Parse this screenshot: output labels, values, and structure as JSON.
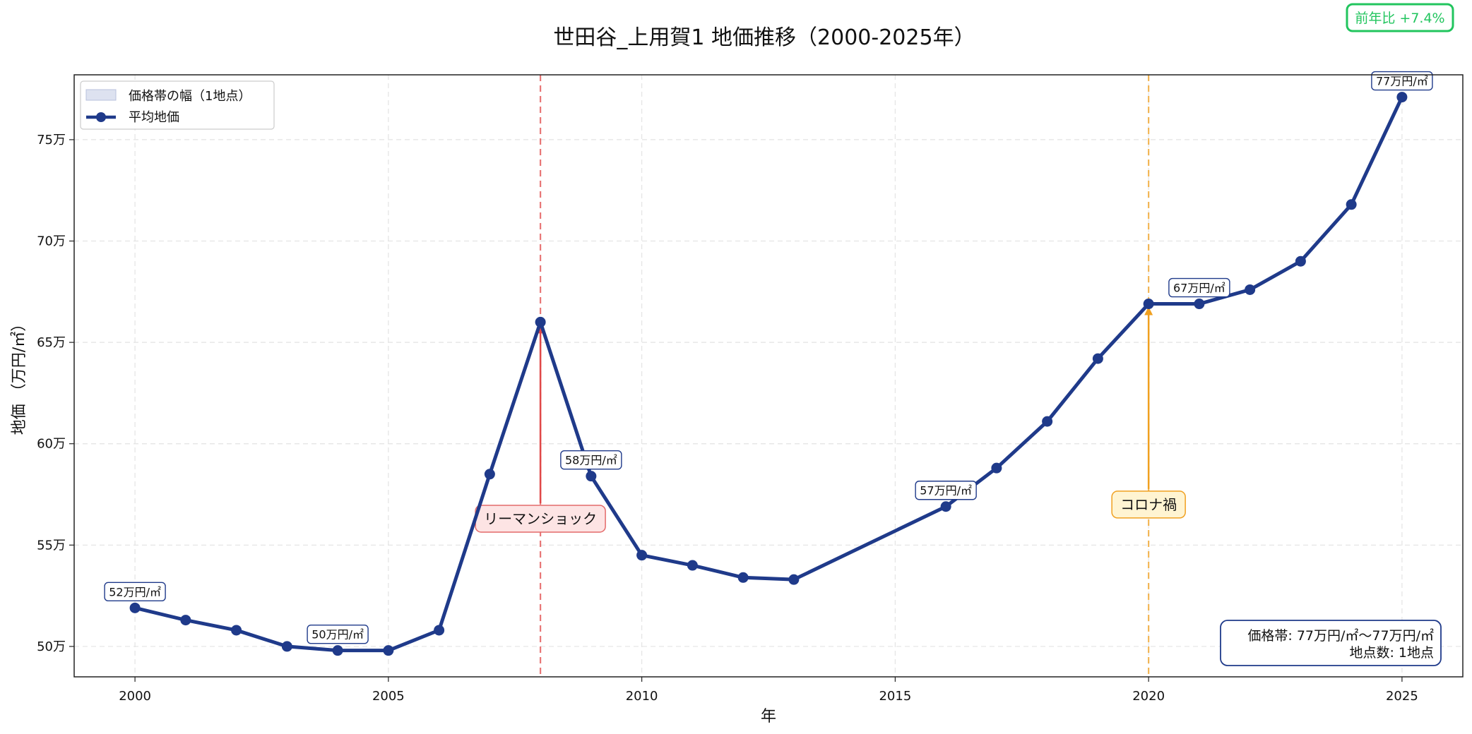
{
  "chart_data": {
    "type": "line",
    "title": "世田谷_上用賀1 地価推移（2000-2025年）",
    "xlabel": "年",
    "ylabel": "地価 （万円/㎡）",
    "xlim": [
      1998.8,
      2026.2
    ],
    "ylim": [
      48.5,
      78.2
    ],
    "x_ticks": [
      2000,
      2005,
      2010,
      2015,
      2020,
      2025
    ],
    "y_ticks": [
      50,
      55,
      60,
      65,
      70,
      75
    ],
    "y_tick_suffix": "万",
    "grid": true,
    "legend_position": "top-left",
    "legend": [
      {
        "label": "価格帯の幅（1地点）",
        "kind": "band"
      },
      {
        "label": "平均地価",
        "kind": "line"
      }
    ],
    "series": [
      {
        "name": "平均地価",
        "x": [
          2000,
          2001,
          2002,
          2003,
          2004,
          2005,
          2006,
          2007,
          2008,
          2009,
          2010,
          2011,
          2012,
          2013,
          2016,
          2017,
          2018,
          2019,
          2020,
          2021,
          2022,
          2023,
          2024,
          2025
        ],
        "values": [
          51.9,
          51.3,
          50.8,
          50.0,
          49.8,
          49.8,
          50.8,
          58.5,
          66.0,
          58.4,
          54.5,
          54.0,
          53.4,
          53.3,
          56.9,
          58.8,
          61.1,
          64.2,
          66.9,
          66.9,
          67.6,
          69.0,
          71.8,
          77.1
        ],
        "color": "#1f3a8a"
      }
    ],
    "data_labels": [
      {
        "x": 2000,
        "y": 51.9,
        "text": "52万円/㎡"
      },
      {
        "x": 2004,
        "y": 49.8,
        "text": "50万円/㎡"
      },
      {
        "x": 2009,
        "y": 58.4,
        "text": "58万円/㎡"
      },
      {
        "x": 2016,
        "y": 56.9,
        "text": "57万円/㎡"
      },
      {
        "x": 2021,
        "y": 66.9,
        "text": "67万円/㎡"
      },
      {
        "x": 2025,
        "y": 77.1,
        "text": "77万円/㎡"
      }
    ],
    "events": [
      {
        "x": 2008,
        "y": 66.0,
        "label": "リーマンショック",
        "label_y": 56.3,
        "color": "#e04848",
        "box_fill": "#fde4e4",
        "box_stroke": "#e46a6a"
      },
      {
        "x": 2020,
        "y": 66.9,
        "label": "コロナ禍",
        "label_y": 57.0,
        "color": "#f0a020",
        "box_fill": "#fff4d2",
        "box_stroke": "#f0a020"
      }
    ],
    "annotations": {
      "yoy": "前年比 +7.4%",
      "yoy_color": "#22c55e",
      "info_line1": "価格帯: 77万円/㎡～77万円/㎡",
      "info_line2": "地点数: 1地点"
    }
  }
}
